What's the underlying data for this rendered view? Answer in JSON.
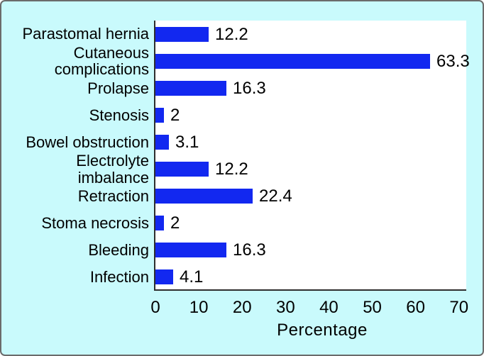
{
  "chart_data": {
    "type": "bar",
    "orientation": "horizontal",
    "categories": [
      "Parastomal hernia",
      "Cutaneous complications",
      "Prolapse",
      "Stenosis",
      "Bowel obstruction",
      "Electrolyte imbalance",
      "Retraction",
      "Stoma necrosis",
      "Bleeding",
      "Infection"
    ],
    "values": [
      12.2,
      63.3,
      16.3,
      2,
      3.1,
      12.2,
      22.4,
      2,
      16.3,
      4.1
    ],
    "xlabel": "Percentage",
    "xlim": [
      0,
      72
    ],
    "xticks": [
      0,
      10,
      20,
      30,
      40,
      50,
      60,
      70
    ],
    "grid": false,
    "colors": {
      "bar": "#1228F0",
      "panel_background": "#C9FAFC",
      "plot_background": "#FFFFFF",
      "axis": "#2E2E2E",
      "text": "#000000",
      "frame_border": "#6B6B6B"
    }
  }
}
